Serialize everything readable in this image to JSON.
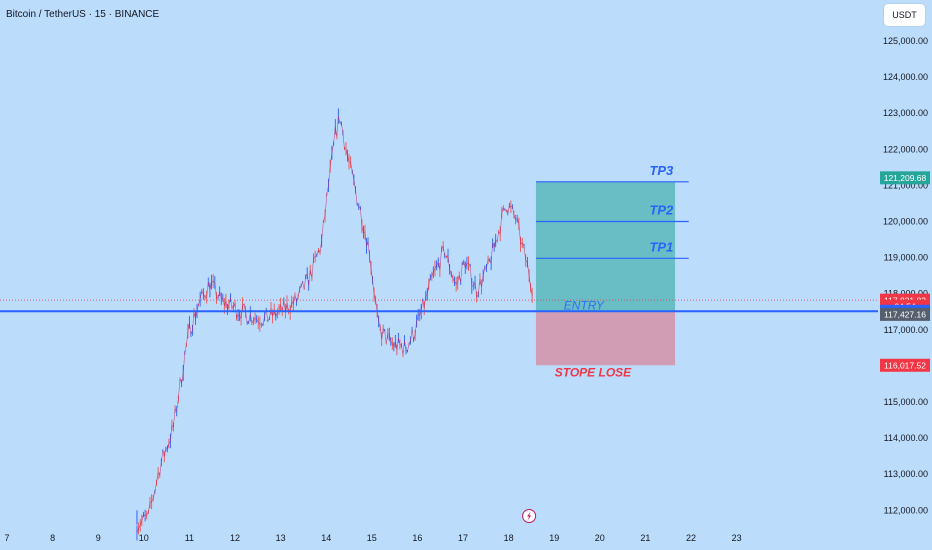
{
  "header": {
    "title": "Bitcoin / TetherUS · 15 · BINANCE",
    "currency": "USDT"
  },
  "chart_data": {
    "type": "candlestick",
    "x_labels": [
      "7",
      "8",
      "9",
      "10",
      "11",
      "12",
      "13",
      "14",
      "15",
      "16",
      "17",
      "18",
      "19",
      "20",
      "21",
      "22",
      "23"
    ],
    "y_ticks": [
      112000,
      113000,
      114000,
      115000,
      116000,
      117000,
      118000,
      119000,
      120000,
      121000,
      122000,
      123000,
      124000,
      125000
    ],
    "ylim": [
      111500,
      125600
    ],
    "grid": false,
    "price_path": [
      [
        9.85,
        111620
      ],
      [
        10.1,
        111800
      ],
      [
        10.35,
        113200
      ],
      [
        10.65,
        114300
      ],
      [
        10.9,
        116300
      ],
      [
        11.0,
        117000
      ],
      [
        11.2,
        117700
      ],
      [
        11.45,
        118300
      ],
      [
        11.7,
        117800
      ],
      [
        12.0,
        117600
      ],
      [
        12.3,
        117400
      ],
      [
        12.65,
        117300
      ],
      [
        13.0,
        117500
      ],
      [
        13.35,
        117800
      ],
      [
        13.65,
        118500
      ],
      [
        13.9,
        119400
      ],
      [
        14.05,
        121000
      ],
      [
        14.2,
        122400
      ],
      [
        14.3,
        122900
      ],
      [
        14.5,
        121600
      ],
      [
        14.75,
        120300
      ],
      [
        14.95,
        119200
      ],
      [
        15.15,
        117000
      ],
      [
        15.45,
        116600
      ],
      [
        15.75,
        116500
      ],
      [
        15.95,
        117000
      ],
      [
        16.15,
        117700
      ],
      [
        16.35,
        118500
      ],
      [
        16.6,
        119200
      ],
      [
        16.85,
        118200
      ],
      [
        17.05,
        118900
      ],
      [
        17.3,
        118100
      ],
      [
        17.55,
        118700
      ],
      [
        17.75,
        119600
      ],
      [
        17.95,
        120500
      ],
      [
        18.15,
        120100
      ],
      [
        18.3,
        119300
      ],
      [
        18.45,
        118600
      ],
      [
        18.55,
        118000
      ]
    ],
    "drawing": {
      "tp3": {
        "label": "TP3",
        "value": 121100
      },
      "tp2": {
        "label": "TP2",
        "value": 120000
      },
      "tp1": {
        "label": "TP1",
        "value": 118980
      },
      "entry": {
        "label": "ENTRY",
        "value": 117512.67
      },
      "stop": {
        "label": "STOPE LOSE",
        "value": 116017.52
      },
      "start_day": 18.6,
      "end_day": 21.65
    },
    "price_labels": [
      {
        "text": "121,209.68",
        "value": 121209.68,
        "color": "#26a69a"
      },
      {
        "text": "117,821.83",
        "value": 117821.83,
        "color": "#f23645"
      },
      {
        "text": "04:54",
        "value": 117650,
        "color": "#f23645"
      },
      {
        "text": "117,512.67",
        "value": 117512.67,
        "color": "#2962ff"
      },
      {
        "text": "117,427.16",
        "value": 117427.16,
        "color": "#555f6e"
      },
      {
        "text": "116,017.52",
        "value": 116017.52,
        "color": "#f23645"
      }
    ],
    "event_icon": "lightning-icon"
  }
}
